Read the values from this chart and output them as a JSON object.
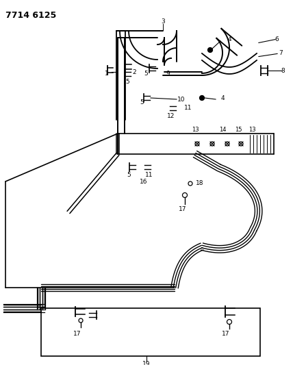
{
  "title": "7714 6125",
  "bg": "#ffffff",
  "lc": "#000000",
  "figsize": [
    4.28,
    5.33
  ],
  "dpi": 100
}
